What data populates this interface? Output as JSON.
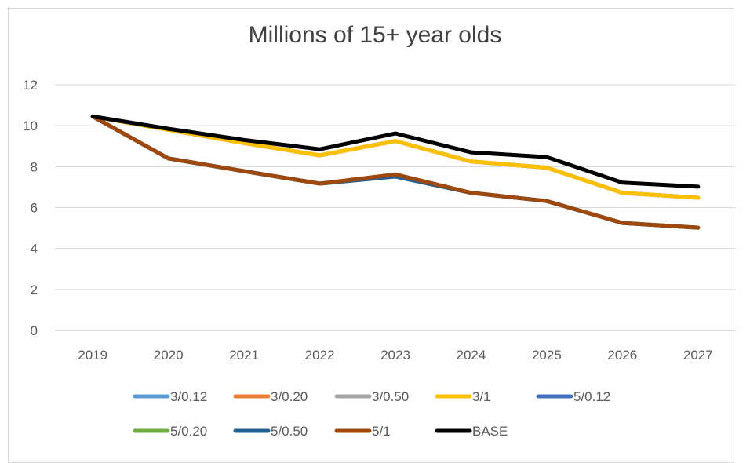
{
  "chart_data": {
    "type": "line",
    "title": "Millions of 15+ year olds",
    "xlabel": "",
    "ylabel": "",
    "x": [
      "2019",
      "2020",
      "2021",
      "2022",
      "2023",
      "2024",
      "2025",
      "2026",
      "2027"
    ],
    "ylim": [
      0,
      12
    ],
    "yticks": [
      0,
      2,
      4,
      6,
      8,
      10,
      12
    ],
    "grid": true,
    "legend_position": "bottom",
    "series": [
      {
        "name": "3/0.12",
        "color": "#5b9bd5",
        "values": [
          10.45,
          9.8,
          9.15,
          8.55,
          9.25,
          8.25,
          7.95,
          6.72,
          6.48
        ]
      },
      {
        "name": "3/0.20",
        "color": "#ed7d31",
        "values": [
          10.45,
          9.8,
          9.15,
          8.55,
          9.25,
          8.25,
          7.95,
          6.72,
          6.48
        ]
      },
      {
        "name": "3/0.50",
        "color": "#a5a5a5",
        "values": [
          10.45,
          9.8,
          9.15,
          8.55,
          9.25,
          8.25,
          7.95,
          6.72,
          6.48
        ]
      },
      {
        "name": "3/1",
        "color": "#ffc000",
        "values": [
          10.45,
          9.8,
          9.15,
          8.55,
          9.25,
          8.25,
          7.95,
          6.72,
          6.48
        ]
      },
      {
        "name": "5/0.12",
        "color": "#4472c4",
        "values": [
          10.45,
          8.4,
          7.78,
          7.17,
          7.52,
          6.72,
          6.32,
          5.25,
          5.02
        ]
      },
      {
        "name": "5/0.20",
        "color": "#70ad47",
        "values": [
          10.45,
          8.4,
          7.78,
          7.17,
          7.52,
          6.72,
          6.32,
          5.25,
          5.02
        ]
      },
      {
        "name": "5/0.50",
        "color": "#255e91",
        "values": [
          10.45,
          8.4,
          7.78,
          7.17,
          7.52,
          6.72,
          6.32,
          5.25,
          5.02
        ]
      },
      {
        "name": "5/1",
        "color": "#9e480e",
        "values": [
          10.45,
          8.4,
          7.78,
          7.17,
          7.62,
          6.72,
          6.32,
          5.25,
          5.02
        ]
      },
      {
        "name": "BASE",
        "color": "#000000",
        "values": [
          10.45,
          9.85,
          9.3,
          8.85,
          9.62,
          8.7,
          8.47,
          7.22,
          7.02
        ]
      }
    ]
  }
}
